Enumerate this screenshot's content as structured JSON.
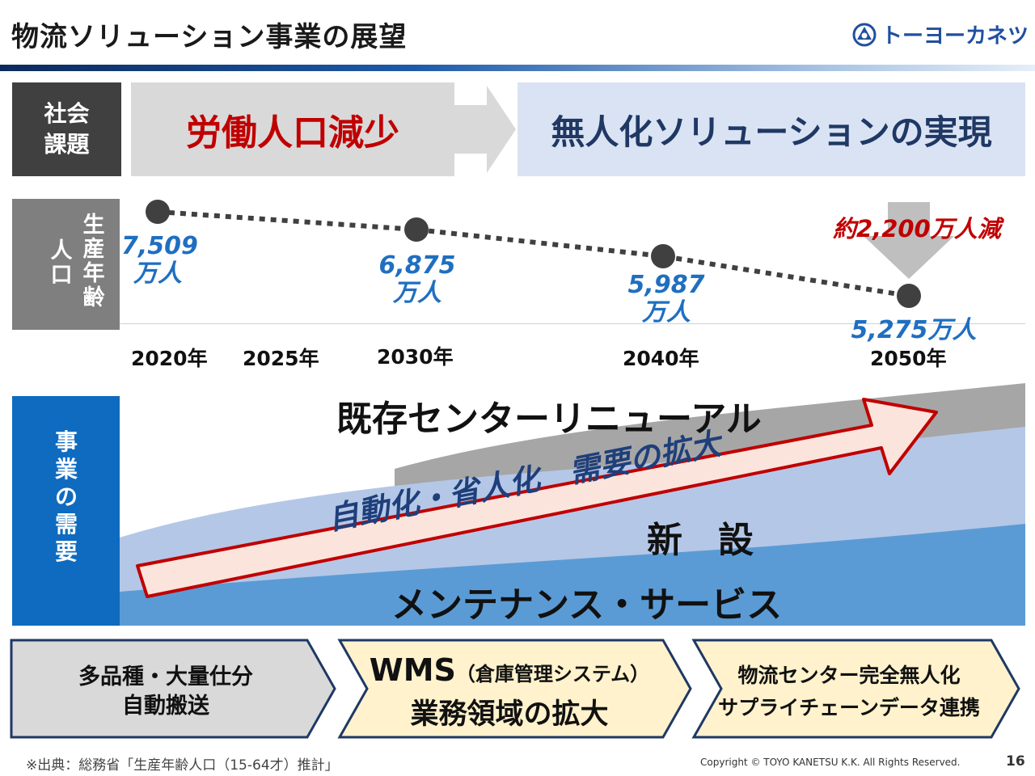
{
  "title": "物流ソリューション事業の展望",
  "logo": {
    "text": "トーヨーカネツ",
    "icon": "company-logo-icon"
  },
  "social_issue": {
    "label_line1": "社会",
    "label_line2": "課題",
    "left_text": "労働人口減少",
    "right_text": "無人化ソリューションの実現"
  },
  "population": {
    "label_col1": "生産年齢",
    "label_col2": "人口",
    "points": [
      {
        "year": "2020年",
        "value_line1": "7,509",
        "value_line2": "万人"
      },
      {
        "year": "2030年",
        "value_line1": "6,875",
        "value_line2": "万人"
      },
      {
        "year": "2040年",
        "value_line1": "5,987",
        "value_line2": "万人"
      },
      {
        "year": "2050年",
        "value_line1": "5,275万人",
        "value_line2": ""
      }
    ],
    "extra_year": "2025年",
    "decline_text": "約2,200万人減"
  },
  "demand": {
    "label": "事業の需要",
    "renewal": "既存センターリニューアル",
    "new_build": "新　設",
    "maintenance": "メンテナンス・サービス",
    "arrow_text": "自動化・省人化　需要の拡大"
  },
  "chevrons": [
    {
      "line1": "多品種・大量仕分",
      "line2": "自動搬送"
    },
    {
      "line1_main": "WMS",
      "line1_sub": "（倉庫管理システム）",
      "line2": "業務領域の拡大"
    },
    {
      "line1": "物流センター完全無人化",
      "line2": "サプライチェーンデータ連携"
    }
  ],
  "footnote": "※出典：総務省「生産年齢人口（15-64才）推計」",
  "copyright": "Copyright © TOYO KANETSU K.K. All Rights Reserved.",
  "page_number": "16",
  "colors": {
    "navy": "#1f3864",
    "accent_red": "#c00000",
    "value_blue": "#1f6fc0",
    "demand_blue": "#0e6bc0"
  }
}
